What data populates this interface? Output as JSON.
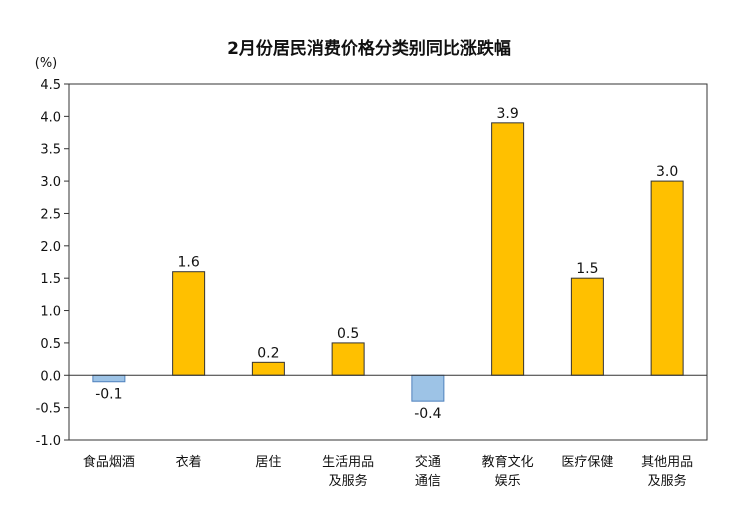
{
  "chart_data": {
    "type": "bar",
    "title": "2月份居民消费价格分类别同比涨跌幅",
    "ylabel": "(%)",
    "xlabel": "",
    "ylim": [
      -1.0,
      4.5
    ],
    "ytick_step": 0.5,
    "yticks": [
      "4.5",
      "4.0",
      "3.5",
      "3.0",
      "2.5",
      "2.0",
      "1.5",
      "1.0",
      "0.5",
      "0.0",
      "-0.5",
      "-1.0"
    ],
    "categories": [
      [
        "食品烟酒"
      ],
      [
        "衣着"
      ],
      [
        "居住"
      ],
      [
        "生活用品",
        "及服务"
      ],
      [
        "交通",
        "通信"
      ],
      [
        "教育文化",
        "娱乐"
      ],
      [
        "医疗保健"
      ],
      [
        "其他用品",
        "及服务"
      ]
    ],
    "values": [
      -0.1,
      1.6,
      0.2,
      0.5,
      -0.4,
      3.9,
      1.5,
      3.0
    ],
    "value_labels": [
      "-0.1",
      "1.6",
      "0.2",
      "0.5",
      "-0.4",
      "3.9",
      "1.5",
      "3.0"
    ],
    "grid": false,
    "legend": "none",
    "colors": {
      "positive": "#FFC000",
      "negative": "#9DC3E6",
      "positive_stroke": "#333333",
      "negative_stroke": "#4F81BD",
      "axis": "#333333",
      "frame": "#333333"
    }
  }
}
